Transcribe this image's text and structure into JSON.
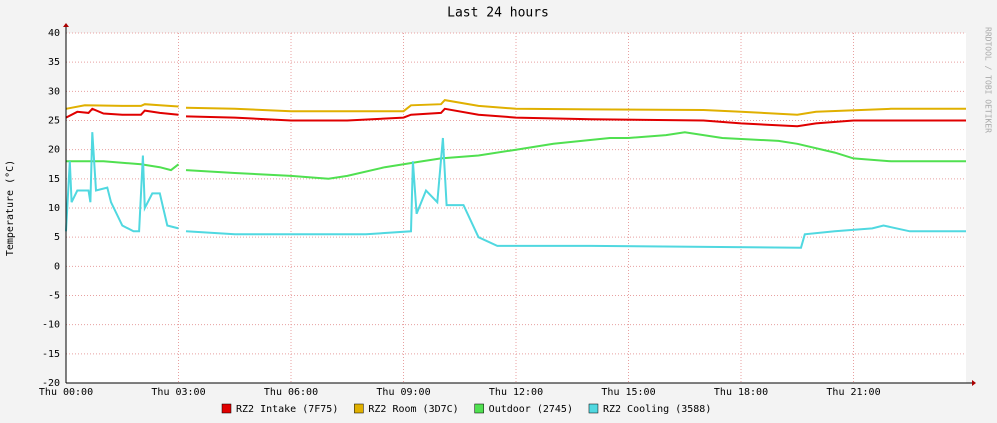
{
  "chart_data": {
    "type": "line",
    "title": "Last 24 hours",
    "y_label": "Temperature (°C)",
    "watermark": "RRDTOOL / TOBI OETIKER",
    "xlim": [
      0,
      24
    ],
    "ylim": [
      -20,
      40
    ],
    "grid": true,
    "xticks": [
      {
        "value": 0,
        "label": "Thu 00:00"
      },
      {
        "value": 3,
        "label": "Thu 03:00"
      },
      {
        "value": 6,
        "label": "Thu 06:00"
      },
      {
        "value": 9,
        "label": "Thu 09:00"
      },
      {
        "value": 12,
        "label": "Thu 12:00"
      },
      {
        "value": 15,
        "label": "Thu 15:00"
      },
      {
        "value": 18,
        "label": "Thu 18:00"
      },
      {
        "value": 21,
        "label": "Thu 21:00"
      }
    ],
    "yticks": [
      -20,
      -15,
      -10,
      -5,
      0,
      5,
      10,
      15,
      20,
      25,
      30,
      35,
      40
    ],
    "series": [
      {
        "name": "RZ2 Intake (7F75)",
        "color": "#e00000",
        "x": [
          0,
          0.3,
          0.6,
          0.7,
          1,
          1.5,
          2,
          2.1,
          2.5,
          3,
          3.1,
          3.2,
          4.5,
          6,
          7.5,
          9,
          9.2,
          10,
          10.1,
          11,
          12,
          14,
          17,
          18,
          19.5,
          20,
          21,
          22,
          24
        ],
        "values": [
          25.5,
          26.5,
          26.3,
          27,
          26.2,
          26,
          26,
          26.7,
          26.3,
          26,
          null,
          25.7,
          25.5,
          25,
          25,
          25.5,
          26,
          26.3,
          27,
          26,
          25.5,
          25.2,
          25,
          24.5,
          24,
          24.5,
          25,
          25,
          25
        ]
      },
      {
        "name": "RZ2 Room (3D7C)",
        "color": "#e0b000",
        "x": [
          0,
          0.5,
          1.5,
          2,
          2.1,
          2.5,
          3,
          3.1,
          3.2,
          4.5,
          6,
          9,
          9.2,
          10,
          10.1,
          11,
          12,
          14,
          17,
          18,
          19.5,
          20,
          22,
          24
        ],
        "values": [
          27,
          27.6,
          27.5,
          27.5,
          27.8,
          27.6,
          27.4,
          null,
          27.2,
          27,
          26.6,
          26.6,
          27.6,
          27.8,
          28.5,
          27.5,
          27,
          26.9,
          26.8,
          26.5,
          26,
          26.5,
          27,
          27
        ]
      },
      {
        "name": "Outdoor (2745)",
        "color": "#50e050",
        "x": [
          0,
          1,
          2,
          2.5,
          2.8,
          3,
          3.1,
          3.2,
          4.5,
          6,
          7,
          7.5,
          8.5,
          9.5,
          10,
          11,
          12,
          13,
          14.5,
          15,
          16,
          16.5,
          17.5,
          19,
          19.5,
          20.5,
          21,
          22,
          24
        ],
        "values": [
          18,
          18,
          17.5,
          17,
          16.5,
          17.5,
          null,
          16.5,
          16,
          15.5,
          15,
          15.5,
          17,
          18,
          18.5,
          19,
          20,
          21,
          22,
          22,
          22.5,
          23,
          22,
          21.5,
          21,
          19.5,
          18.5,
          18,
          18
        ]
      },
      {
        "name": "RZ2 Cooling (3588)",
        "color": "#50d8e0",
        "x": [
          0,
          0.1,
          0.15,
          0.3,
          0.6,
          0.65,
          0.7,
          0.8,
          1.1,
          1.2,
          1.5,
          1.8,
          1.95,
          2.05,
          2.1,
          2.3,
          2.5,
          2.7,
          3,
          3.1,
          3.2,
          4.5,
          8,
          9.2,
          9.25,
          9.35,
          9.6,
          9.9,
          10.05,
          10.15,
          10.6,
          11,
          11.5,
          14,
          19.6,
          19.7,
          20.5,
          21.5,
          21.8,
          22.5,
          24
        ],
        "values": [
          6,
          18,
          11,
          13,
          13,
          11,
          23,
          13,
          13.5,
          11,
          7,
          6,
          6,
          19,
          10,
          12.5,
          12.5,
          7,
          6.5,
          null,
          6,
          5.5,
          5.5,
          6,
          18,
          9,
          13,
          11,
          22,
          10.5,
          10.5,
          5,
          3.5,
          3.5,
          3.2,
          5.5,
          6,
          6.5,
          7,
          6,
          6
        ]
      }
    ]
  }
}
